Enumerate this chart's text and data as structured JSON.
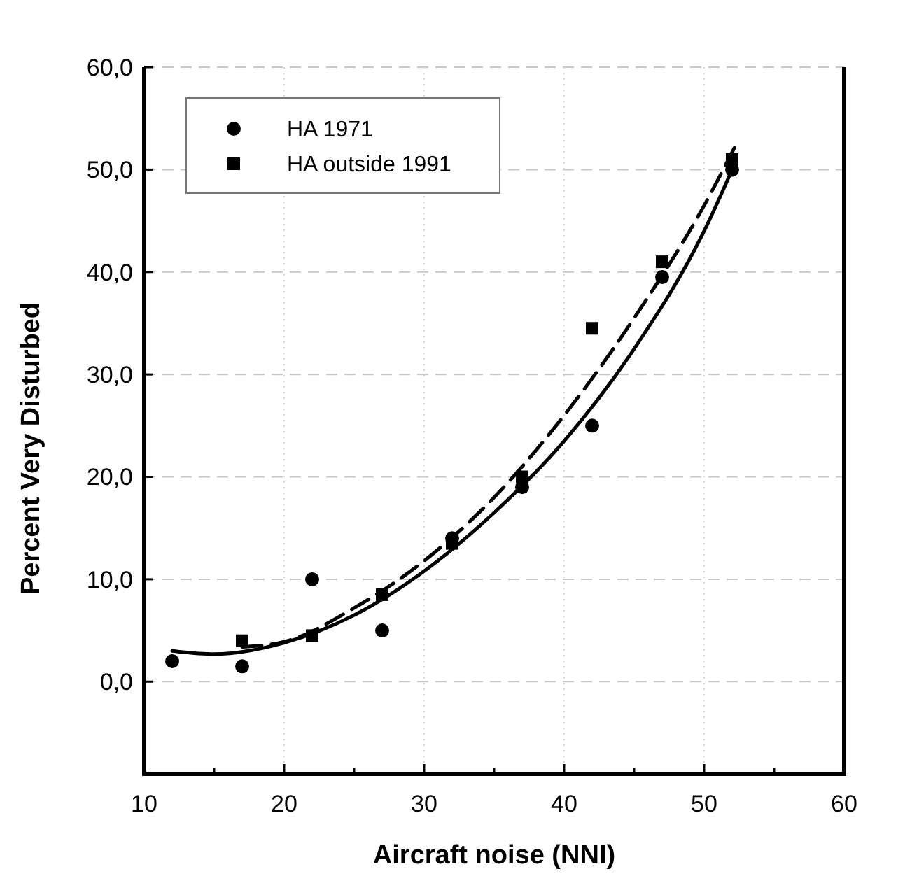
{
  "chart_data": {
    "type": "scatter",
    "xlabel": "Aircraft noise (NNI)",
    "ylabel": "Percent Very Disturbed",
    "xlim": [
      10,
      60
    ],
    "ylim": [
      -9,
      60
    ],
    "xticks": [
      10,
      {
        "value": 15,
        "label": null
      },
      20,
      {
        "value": 25,
        "label": null
      },
      30,
      {
        "value": 35,
        "label": null
      },
      40,
      {
        "value": 45,
        "label": null
      },
      50,
      {
        "value": 55,
        "label": null
      },
      60
    ],
    "yticks": [
      {
        "value": 0,
        "label": "0,0"
      },
      {
        "value": 10,
        "label": "10,0"
      },
      {
        "value": 20,
        "label": "20,0"
      },
      {
        "value": 30,
        "label": "30,0"
      },
      {
        "value": 40,
        "label": "40,0"
      },
      {
        "value": 50,
        "label": "50,0"
      },
      {
        "value": 60,
        "label": "60,0"
      }
    ],
    "grid": true,
    "legend": "top left",
    "series": [
      {
        "name": "HA 1971",
        "color": "#000000",
        "marker": "circle",
        "x": [
          12,
          17,
          22,
          27,
          32,
          37,
          42,
          47,
          52
        ],
        "values": [
          2,
          1.5,
          10,
          5,
          14,
          19,
          25,
          39.5,
          50
        ]
      },
      {
        "name": "HA outside 1991",
        "color": "#000000",
        "marker": "square",
        "x": [
          17,
          22,
          27,
          32,
          37,
          42,
          47,
          52
        ],
        "values": [
          4,
          4.5,
          8.5,
          13.5,
          20,
          34.5,
          41,
          51
        ]
      },
      {
        "type": "line",
        "color": "#000000",
        "line_style": "solid",
        "x": [
          12,
          15,
          20,
          25,
          30,
          35,
          40,
          45,
          50,
          52
        ],
        "values": [
          3,
          2.7,
          3.8,
          6.5,
          10.8,
          16.5,
          23.5,
          32.5,
          44,
          50
        ]
      },
      {
        "type": "line",
        "color": "#000000",
        "line_style": "dashed",
        "x": [
          17,
          20,
          25,
          30,
          35,
          40,
          45,
          50,
          52.3
        ],
        "values": [
          3.4,
          3.9,
          7.2,
          11.8,
          18,
          26,
          35.5,
          46.5,
          52.5
        ]
      }
    ]
  }
}
